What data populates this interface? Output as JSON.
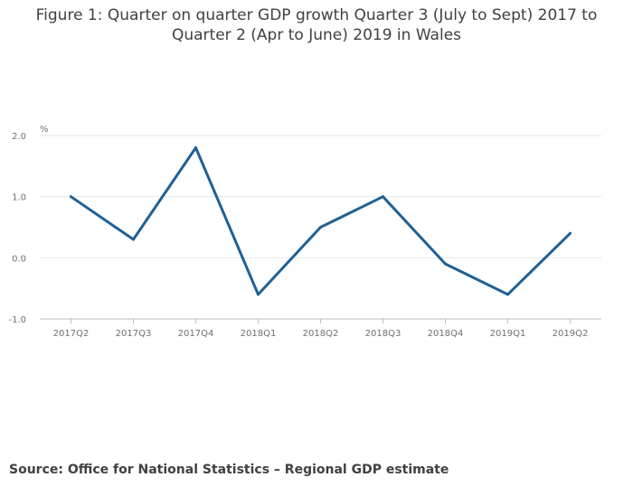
{
  "title_lines": [
    "Figure 1: Quarter on quarter GDP growth Quarter 3 (July to Sept) 2017 to",
    "Quarter 2 (Apr to June) 2019 in Wales"
  ],
  "source": "Source: Office for National Statistics – Regional GDP estimate",
  "colors": {
    "line": "#206095",
    "grid": "#e6e6e6",
    "axis": "#bdbdbd",
    "text": "#707070"
  },
  "chart_data": {
    "type": "line",
    "title": "Figure 1: Quarter on quarter GDP growth Quarter 3 (July to Sept) 2017 to Quarter 2 (Apr to June) 2019 in Wales",
    "xlabel": "",
    "ylabel": "%",
    "categories": [
      "2017Q2",
      "2017Q3",
      "2017Q4",
      "2018Q1",
      "2018Q2",
      "2018Q3",
      "2018Q4",
      "2019Q1",
      "2019Q2"
    ],
    "series": [
      {
        "name": "Wales",
        "values": [
          1.0,
          0.3,
          1.8,
          -0.6,
          0.5,
          1.0,
          -0.1,
          -0.6,
          0.4
        ]
      }
    ],
    "ylim": [
      -1.0,
      2.0
    ],
    "yticks": [
      "2.0",
      "1.0",
      "0.0",
      "-1.0"
    ],
    "grid": true
  }
}
